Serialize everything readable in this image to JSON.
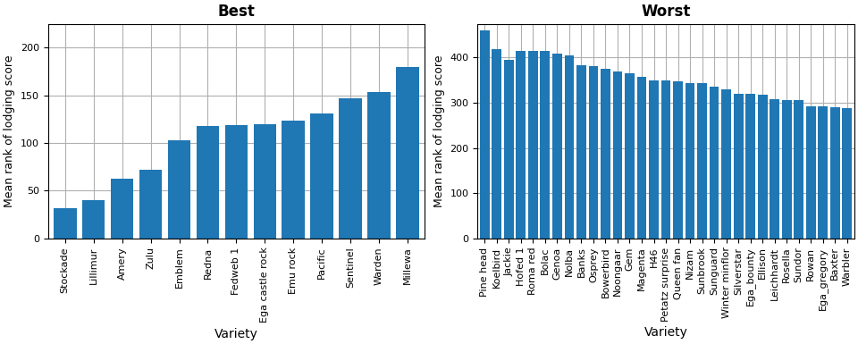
{
  "chart_data": [
    {
      "type": "bar",
      "title": "Best",
      "xlabel": "Variety",
      "ylabel": "Mean rank of lodging score",
      "categories": [
        "Stockade",
        "Lillimur",
        "Amery",
        "Zulu",
        "Emblem",
        "Redna",
        "Fedweb 1",
        "Ega castle rock",
        "Emu rock",
        "Pacific",
        "Sentinel",
        "Warden",
        "Millewa"
      ],
      "values": [
        32,
        40,
        62,
        72,
        103,
        118,
        119,
        120,
        123,
        131,
        147,
        153,
        180
      ],
      "ylim": [
        0,
        225
      ],
      "yticks": [
        0,
        50,
        100,
        150,
        200
      ],
      "grid": true
    },
    {
      "type": "bar",
      "title": "Worst",
      "xlabel": "Variety",
      "ylabel": "Mean rank of lodging score",
      "categories": [
        "Pine head",
        "Koelbird",
        "Jackie",
        "Hofed 1",
        "Roma red",
        "Bolac",
        "Genoa",
        "Nolba",
        "Banks",
        "Osprey",
        "Bowerbird",
        "Noongaar",
        "Gem",
        "Magenta",
        "H46",
        "Petatz surprise",
        "Queen fan",
        "Nizam",
        "Sunbrook",
        "Sunguard",
        "Winter minflor",
        "Silverstar",
        "Ega_bounty",
        "Ellison",
        "Leichhardt",
        "Rosella",
        "Sundor",
        "Rowan",
        "Ega_gregory",
        "Baxter",
        "Warbler"
      ],
      "values": [
        460,
        418,
        395,
        415,
        414,
        414,
        408,
        405,
        383,
        382,
        376,
        370,
        365,
        357,
        350,
        349,
        348,
        344,
        343,
        335,
        330,
        320,
        320,
        318,
        307,
        305,
        305,
        292,
        292,
        291,
        288
      ],
      "ylim": [
        0,
        475
      ],
      "yticks": [
        0,
        100,
        200,
        300,
        400
      ],
      "grid": true
    }
  ]
}
